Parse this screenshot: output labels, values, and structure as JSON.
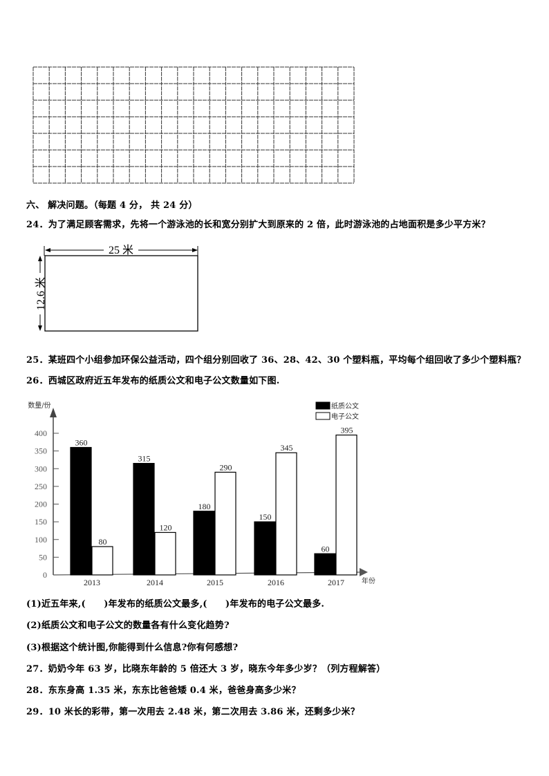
{
  "grid": {
    "columns": 20,
    "rows": 7
  },
  "section": {
    "title": "六、 解决问题。（每题 4 分， 共 24 分）"
  },
  "questions": {
    "q24": "24．为了满足顾客需求，先将一个游泳池的长和宽分别扩大到原来的 2 倍，此时游泳池的占地面积是多少平方米？",
    "q24_figure": {
      "length_label": "25 米",
      "width_label": "12.6 米"
    },
    "q25": "25．某班四个小组参加环保公益活动，四个组分别回收了 36、28、42、30 个塑料瓶，平均每个组回收了多少个塑料瓶？",
    "q26": "26．西城区政府近五年发布的纸质公文和电子公文数量如下图.",
    "q26_1": "(1)近五年来,(　　)年发布的纸质公文最多,(　　)年发布的电子公文最多.",
    "q26_2": "(2)纸质公文和电子公文的数量各有什么变化趋势?",
    "q26_3": "(3)根据这个统计图,你能得到什么信息?你有何感想?",
    "q27": "27．奶奶今年 63 岁，比晓东年龄的 5 倍还大 3 岁，晓东今年多少岁？（列方程解答）",
    "q28": "28．东东身高 1.35 米，东东比爸爸矮 0.4 米，爸爸身高多少米？",
    "q29": "29．10 米长的彩带，第一次用去 2.48 米，第二次用去 3.86 米，还剩多少米？"
  },
  "chart_data": {
    "type": "bar",
    "ylabel": "数量/份",
    "xlabel": "年份",
    "categories": [
      "2013",
      "2014",
      "2015",
      "2016",
      "2017"
    ],
    "yticks": [
      "0",
      "50",
      "100",
      "150",
      "200",
      "250",
      "300",
      "350",
      "400"
    ],
    "ylim": [
      0,
      400
    ],
    "grid": false,
    "legend_position": "top-right",
    "series": [
      {
        "name": "纸质公文",
        "color": "#000000",
        "values": [
          360,
          315,
          180,
          150,
          60
        ],
        "labels": [
          "360",
          "315",
          "180",
          "150",
          "60"
        ]
      },
      {
        "name": "电子公文",
        "color": "#ffffff",
        "values": [
          80,
          120,
          290,
          345,
          395
        ],
        "labels": [
          "80",
          "120",
          "290",
          "345",
          "395"
        ]
      }
    ]
  }
}
